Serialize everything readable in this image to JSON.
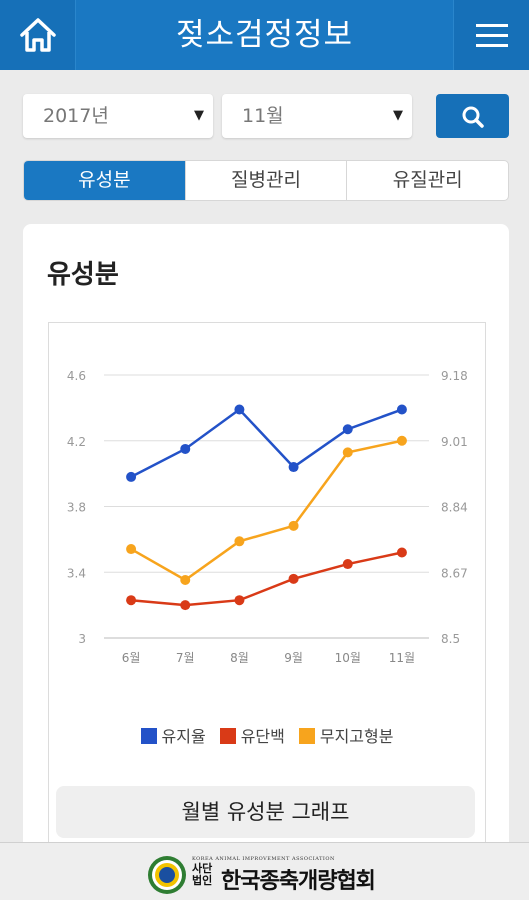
{
  "header": {
    "title": "젖소검정정보"
  },
  "filters": {
    "year": "2017년",
    "month": "11월"
  },
  "tabs": [
    {
      "label": "유성분",
      "active": true
    },
    {
      "label": "질병관리",
      "active": false
    },
    {
      "label": "유질관리",
      "active": false
    }
  ],
  "card": {
    "title": "유성분",
    "caption": "월별 유성분 그래프"
  },
  "chart_data": {
    "type": "line",
    "categories": [
      "6월",
      "7월",
      "8월",
      "9월",
      "10월",
      "11월"
    ],
    "y_left": {
      "ticks": [
        "4.6",
        "4.2",
        "3.8",
        "3.4",
        "3"
      ],
      "range": [
        3,
        4.6
      ]
    },
    "y_right": {
      "ticks": [
        "9.18",
        "9.01",
        "8.84",
        "8.67",
        "8.5"
      ],
      "range": [
        8.5,
        9.18
      ]
    },
    "grid": true,
    "legend_placement": "bottom",
    "series": [
      {
        "name": "유지율",
        "axis": "left",
        "color": "#2352c8",
        "values": [
          3.98,
          4.15,
          4.39,
          4.04,
          4.27,
          4.39
        ]
      },
      {
        "name": "유단백",
        "axis": "left",
        "color": "#d93a17",
        "values": [
          3.23,
          3.2,
          3.23,
          3.36,
          3.45,
          3.52
        ]
      },
      {
        "name": "무지고형분",
        "axis": "right",
        "color": "#f7a41d",
        "values": [
          8.73,
          8.65,
          8.75,
          8.79,
          8.98,
          9.01
        ]
      }
    ]
  },
  "footer": {
    "org_en": "KOREA ANIMAL IMPROVEMENT ASSOCIATION",
    "org_type": "사단법인",
    "org_name": "한국종축개량협회"
  },
  "icons": [
    "home-icon",
    "menu-icon",
    "search-icon",
    "dropdown-arrow-icon"
  ]
}
